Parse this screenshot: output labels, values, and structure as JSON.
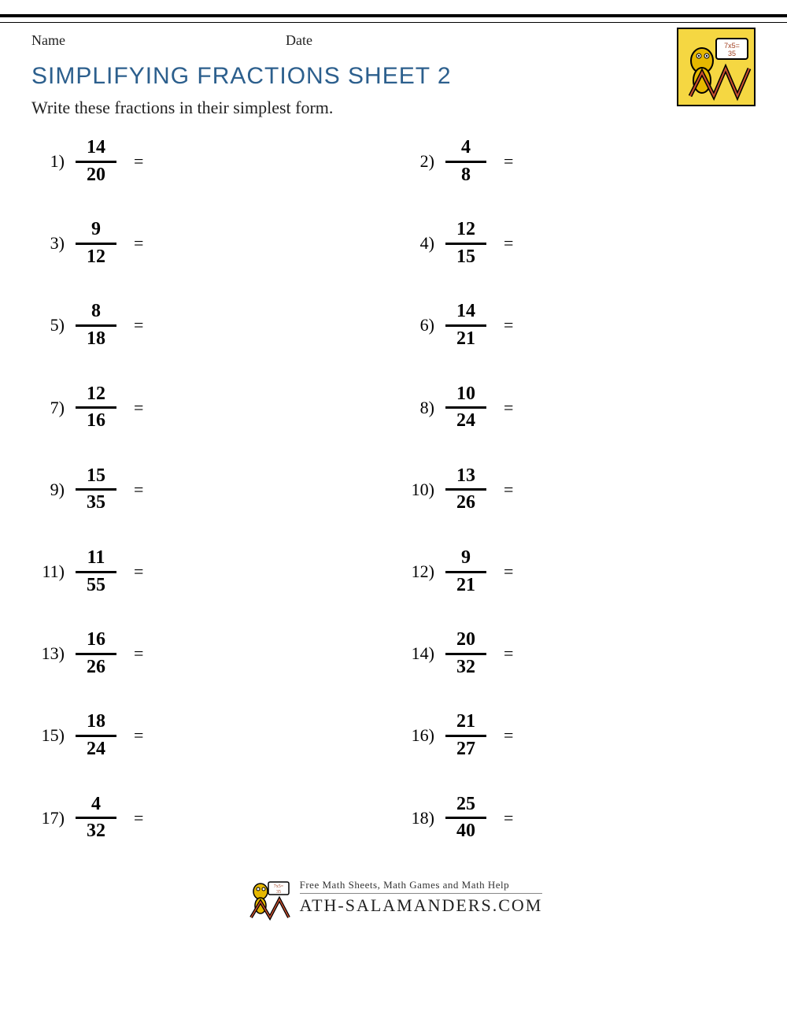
{
  "header": {
    "name_label": "Name",
    "date_label": "Date",
    "title": "SIMPLIFYING FRACTIONS SHEET 2",
    "instructions": "Write these fractions in their simplest form."
  },
  "colors": {
    "title_color": "#2c5f8d",
    "text_color": "#222222",
    "rule_color": "#000000",
    "logo_bg": "#f5d742"
  },
  "problems": [
    {
      "n": "1)",
      "num": "14",
      "den": "20"
    },
    {
      "n": "2)",
      "num": "4",
      "den": "8"
    },
    {
      "n": "3)",
      "num": "9",
      "den": "12"
    },
    {
      "n": "4)",
      "num": "12",
      "den": "15"
    },
    {
      "n": "5)",
      "num": "8",
      "den": "18"
    },
    {
      "n": "6)",
      "num": "14",
      "den": "21"
    },
    {
      "n": "7)",
      "num": "12",
      "den": "16"
    },
    {
      "n": "8)",
      "num": "10",
      "den": "24"
    },
    {
      "n": "9)",
      "num": "15",
      "den": "35"
    },
    {
      "n": "10)",
      "num": "13",
      "den": "26"
    },
    {
      "n": "11)",
      "num": "11",
      "den": "55"
    },
    {
      "n": "12)",
      "num": "9",
      "den": "21"
    },
    {
      "n": "13)",
      "num": "16",
      "den": "26"
    },
    {
      "n": "14)",
      "num": "20",
      "den": "32"
    },
    {
      "n": "15)",
      "num": "18",
      "den": "24"
    },
    {
      "n": "16)",
      "num": "21",
      "den": "27"
    },
    {
      "n": "17)",
      "num": "4",
      "den": "32"
    },
    {
      "n": "18)",
      "num": "25",
      "den": "40"
    }
  ],
  "equals": "=",
  "footer": {
    "tagline": "Free Math Sheets, Math Games and Math Help",
    "site": "ATH-SALAMANDERS.COM"
  }
}
